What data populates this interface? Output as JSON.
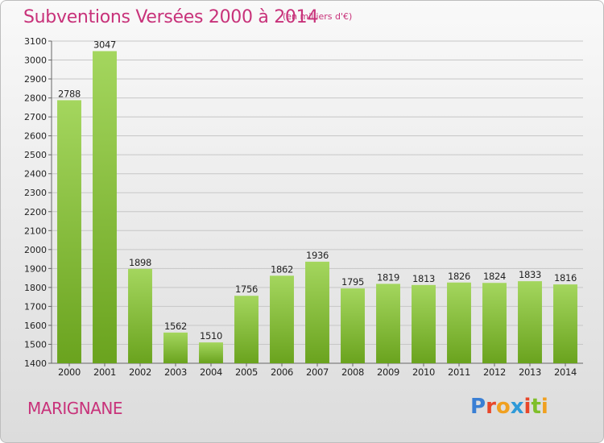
{
  "title": "Subventions Versées 2000 à 2014",
  "unit_note": "(en milliers d'€)",
  "commune": "MARIGNANE",
  "logo": {
    "letters": [
      "P",
      "r",
      "o",
      "x",
      "i",
      "t",
      "i"
    ],
    "colors": [
      "#3a7fd4",
      "#e8472a",
      "#f0a020",
      "#2f9ad8",
      "#e8472a",
      "#7fbf2a",
      "#f0a020"
    ]
  },
  "chart_data": {
    "type": "bar",
    "title": "Subventions Versées 2000 à 2014",
    "categories": [
      "2000",
      "2001",
      "2002",
      "2003",
      "2004",
      "2005",
      "2006",
      "2007",
      "2008",
      "2009",
      "2010",
      "2011",
      "2012",
      "2013",
      "2014"
    ],
    "values": [
      2788,
      3047,
      1898,
      1562,
      1510,
      1756,
      1862,
      1936,
      1795,
      1819,
      1813,
      1826,
      1824,
      1833,
      1816
    ],
    "ylim": [
      1400,
      3100
    ],
    "yticks": [
      1400,
      1500,
      1600,
      1700,
      1800,
      1900,
      2000,
      2100,
      2200,
      2300,
      2400,
      2500,
      2600,
      2700,
      2800,
      2900,
      3000,
      3100
    ],
    "grid": true,
    "bar_color_top": "#a4d65e",
    "bar_color_bottom": "#6aa31e"
  }
}
